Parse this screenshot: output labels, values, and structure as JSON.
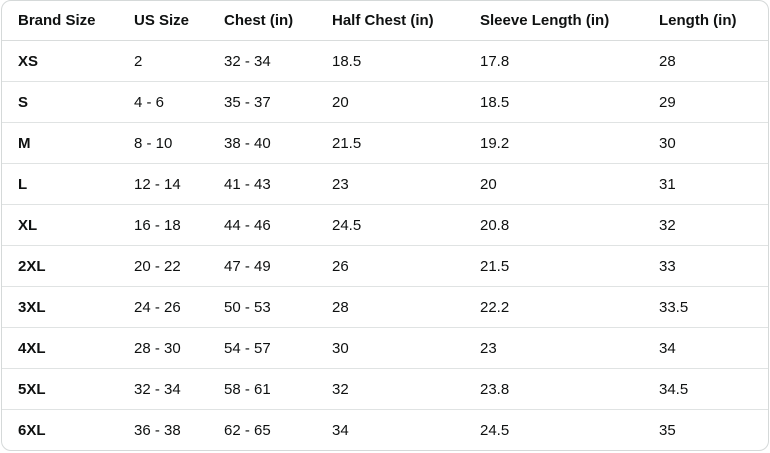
{
  "table": {
    "title": "size-chart",
    "columns": [
      "Brand Size",
      "US Size",
      "Chest (in)",
      "Half Chest (in)",
      "Sleeve Length (in)",
      "Length (in)"
    ],
    "rows": [
      [
        "XS",
        "2",
        "32 - 34",
        "18.5",
        "17.8",
        "28"
      ],
      [
        "S",
        "4 - 6",
        "35 - 37",
        "20",
        "18.5",
        "29"
      ],
      [
        "M",
        "8 - 10",
        "38 - 40",
        "21.5",
        "19.2",
        "30"
      ],
      [
        "L",
        "12 - 14",
        "41 - 43",
        "23",
        "20",
        "31"
      ],
      [
        "XL",
        "16 - 18",
        "44 - 46",
        "24.5",
        "20.8",
        "32"
      ],
      [
        "2XL",
        "20 - 22",
        "47 - 49",
        "26",
        "21.5",
        "33"
      ],
      [
        "3XL",
        "24 - 26",
        "50 - 53",
        "28",
        "22.2",
        "33.5"
      ],
      [
        "4XL",
        "28 - 30",
        "54 - 57",
        "30",
        "23",
        "34"
      ],
      [
        "5XL",
        "32 - 34",
        "58 - 61",
        "32",
        "23.8",
        "34.5"
      ],
      [
        "6XL",
        "36 - 38",
        "62 - 65",
        "34",
        "24.5",
        "35"
      ]
    ]
  },
  "colors": {
    "text": "#0f1111",
    "outer_border": "#d5d9d9",
    "row_divider": "#e0e3e3",
    "background": "#ffffff"
  }
}
